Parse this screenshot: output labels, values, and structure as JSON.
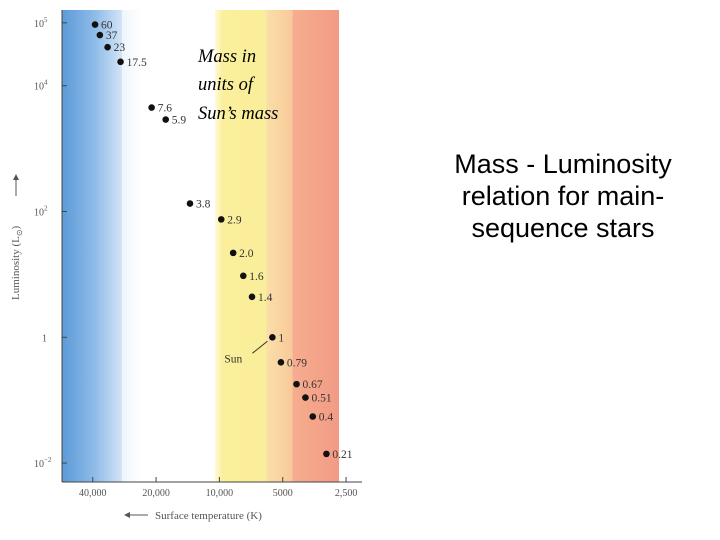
{
  "caption": {
    "line1": "Mass - Luminosity",
    "line2": "relation for main-",
    "line3": "sequence stars"
  },
  "annotation": {
    "line1": "Mass in",
    "line2": "units of",
    "line3": "Sun’s mass"
  },
  "chart_data": {
    "type": "scatter",
    "xlabel": "Surface temperature (K)",
    "ylabel": "Luminosity (L",
    "ylabel_sub": "⊙",
    "ylabel_close": ")",
    "x_scale": "log",
    "y_scale": "log",
    "x_reversed": true,
    "xlim": [
      56000,
      2100
    ],
    "ylim": [
      0.005,
      160000
    ],
    "x_ticks": [
      {
        "value": 40000,
        "label": "40,000"
      },
      {
        "value": 20000,
        "label": "20,000"
      },
      {
        "value": 10000,
        "label": "10,000"
      },
      {
        "value": 5000,
        "label": "5000"
      },
      {
        "value": 2500,
        "label": "2,500"
      }
    ],
    "y_ticks": [
      {
        "value": 100000,
        "base": "10",
        "exp": "5"
      },
      {
        "value": 10000,
        "base": "10",
        "exp": "4"
      },
      {
        "value": 100,
        "base": "10",
        "exp": "2"
      },
      {
        "value": 1,
        "base": "1",
        "exp": ""
      },
      {
        "value": 0.01,
        "base": "10",
        "exp": "−2"
      }
    ],
    "points": [
      {
        "label": "60",
        "temperature": 39000,
        "luminosity": 94000
      },
      {
        "label": "37",
        "temperature": 37000,
        "luminosity": 64000
      },
      {
        "label": "23",
        "temperature": 34000,
        "luminosity": 41000
      },
      {
        "label": "17.5",
        "temperature": 29500,
        "luminosity": 24000
      },
      {
        "label": "7.6",
        "temperature": 21000,
        "luminosity": 4500
      },
      {
        "label": "5.9",
        "temperature": 18000,
        "luminosity": 2900
      },
      {
        "label": "3.8",
        "temperature": 13800,
        "luminosity": 134
      },
      {
        "label": "2.9",
        "temperature": 9800,
        "luminosity": 75
      },
      {
        "label": "2.0",
        "temperature": 8600,
        "luminosity": 22
      },
      {
        "label": "1.6",
        "temperature": 7700,
        "luminosity": 9.5
      },
      {
        "label": "1.4",
        "temperature": 7000,
        "luminosity": 4.4
      },
      {
        "label": "1",
        "temperature": 5600,
        "luminosity": 1.0
      },
      {
        "label": "0.79",
        "temperature": 5100,
        "luminosity": 0.4
      },
      {
        "label": "0.67",
        "temperature": 4300,
        "luminosity": 0.18
      },
      {
        "label": "0.51",
        "temperature": 3900,
        "luminosity": 0.11
      },
      {
        "label": "0.4",
        "temperature": 3600,
        "luminosity": 0.055
      },
      {
        "label": "0.21",
        "temperature": 3100,
        "luminosity": 0.014
      }
    ],
    "sun_label": "Sun",
    "color_bands": [
      {
        "from": 56000,
        "to": 29000,
        "color": "#8fb8e6",
        "class": "blue"
      },
      {
        "from": 29000,
        "to": 10500,
        "color": "#ffffff",
        "class": "white"
      },
      {
        "from": 10500,
        "to": 6000,
        "color": "#faf1a0",
        "class": "yellow"
      },
      {
        "from": 6000,
        "to": 4500,
        "color": "#f9d4a2",
        "class": "orange"
      },
      {
        "from": 4500,
        "to": 2700,
        "color": "#f4a48c",
        "class": "red"
      }
    ],
    "grid": false
  }
}
